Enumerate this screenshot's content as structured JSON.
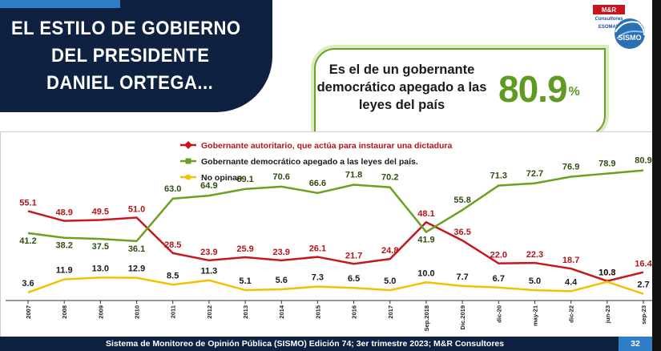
{
  "title": {
    "lines": [
      "EL ESTILO DE GOBIERNO",
      "DEL PRESIDENTE",
      "DANIEL ORTEGA..."
    ]
  },
  "logo": {
    "brand_line1": "M&R",
    "brand_line2": "Consultores",
    "brand_line3": "ESOMAR",
    "badge": "SISMO"
  },
  "callout": {
    "text": "Es el de un gobernante democrático apegado a las leyes del país",
    "value": "80.9",
    "unit": "%"
  },
  "footer": {
    "text": "Sistema de Monitoreo de Opinión Pública (SISMO) Edición 74; 3er trimestre 2023; M&R Consultores",
    "page": "32"
  },
  "chart_data": {
    "type": "line",
    "categories": [
      "2007",
      "2008",
      "2009",
      "2010",
      "2011",
      "2012",
      "2013",
      "2014",
      "2015",
      "2016",
      "2017",
      "Sep.2018",
      "Dic.2019",
      "dic-20",
      "may-21",
      "dic-22",
      "jun-23",
      "sep-23"
    ],
    "series": [
      {
        "name": "Gobernante autoritario, que actúa para instaurar una dictadura",
        "color": "#c8161d",
        "marker": "diamond",
        "values": [
          55.1,
          48.9,
          49.5,
          51.0,
          28.5,
          23.9,
          25.9,
          23.9,
          26.1,
          21.7,
          24.8,
          48.1,
          36.5,
          22.0,
          22.3,
          18.7,
          10.8,
          16.4
        ]
      },
      {
        "name": "Gobernante  democrático apegado a las leyes del país.",
        "color": "#6aa121",
        "marker": "square",
        "values": [
          41.2,
          38.2,
          37.5,
          36.1,
          63.0,
          64.9,
          69.1,
          70.6,
          66.6,
          71.8,
          70.2,
          41.9,
          55.8,
          71.3,
          72.7,
          76.9,
          78.9,
          80.9
        ]
      },
      {
        "name": "No opinan",
        "color": "#f2c200",
        "marker": "circle",
        "values": [
          3.6,
          11.9,
          13.0,
          12.9,
          8.5,
          11.3,
          5.1,
          5.6,
          7.3,
          6.5,
          5.0,
          10.0,
          7.7,
          6.7,
          5.0,
          4.4,
          10.3,
          2.7
        ]
      }
    ],
    "ylim": [
      0,
      100
    ],
    "grid": false,
    "legend": "top-center",
    "title": "",
    "xlabel": "",
    "ylabel": ""
  }
}
